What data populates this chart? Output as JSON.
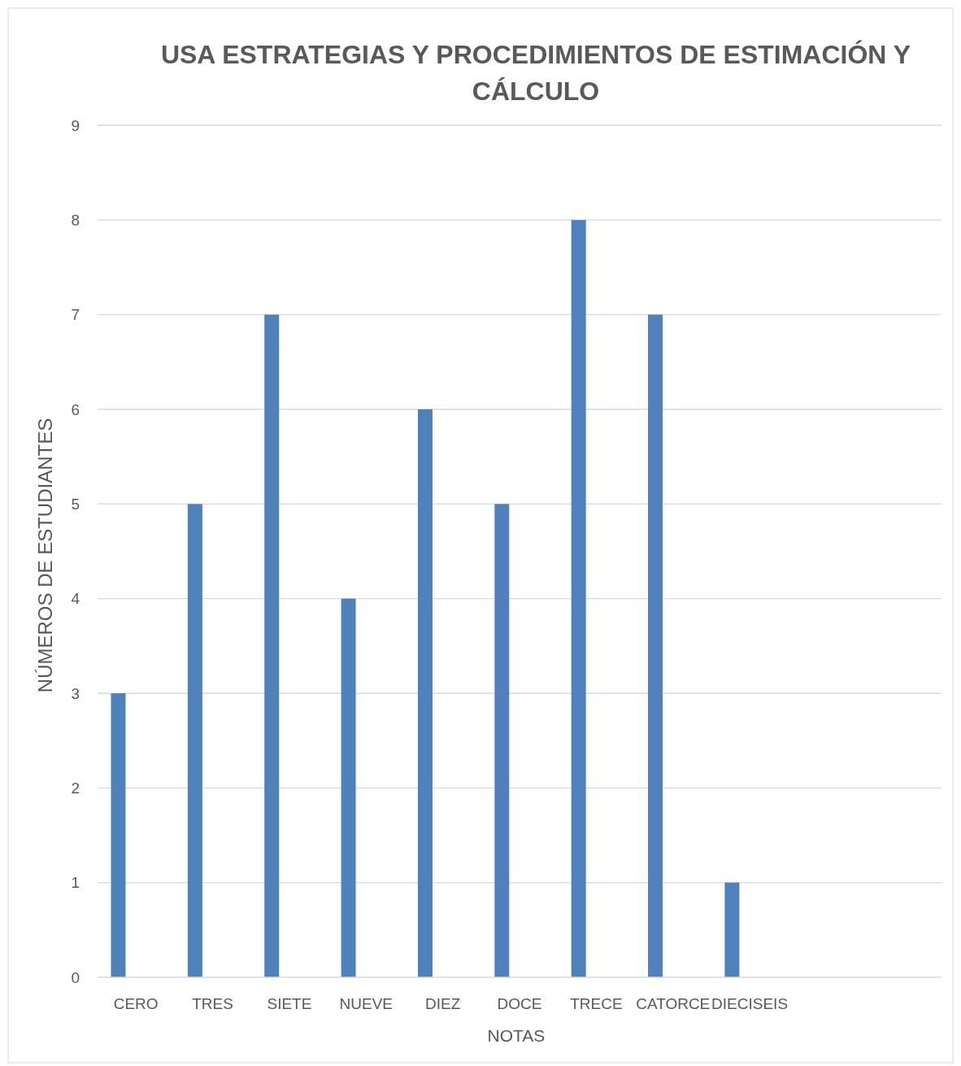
{
  "chart_data": {
    "type": "bar",
    "title": "USA ESTRATEGIAS Y PROCEDIMIENTOS DE ESTIMACIÓN Y CÁLCULO",
    "xlabel": "NOTAS",
    "ylabel": "NÚMEROS DE ESTUDIANTES",
    "categories": [
      "CERO",
      "TRES",
      "SIETE",
      "NUEVE",
      "DIEZ",
      "DOCE",
      "TRECE",
      "CATORCE",
      "DIECISEIS",
      null,
      null
    ],
    "values": [
      3,
      5,
      7,
      4,
      6,
      5,
      8,
      7,
      1,
      null,
      null
    ],
    "color": "#4f81bd",
    "ylim": [
      0,
      9
    ],
    "yticks": [
      0,
      1,
      2,
      3,
      4,
      5,
      6,
      7,
      8,
      9
    ],
    "grid": "y"
  }
}
